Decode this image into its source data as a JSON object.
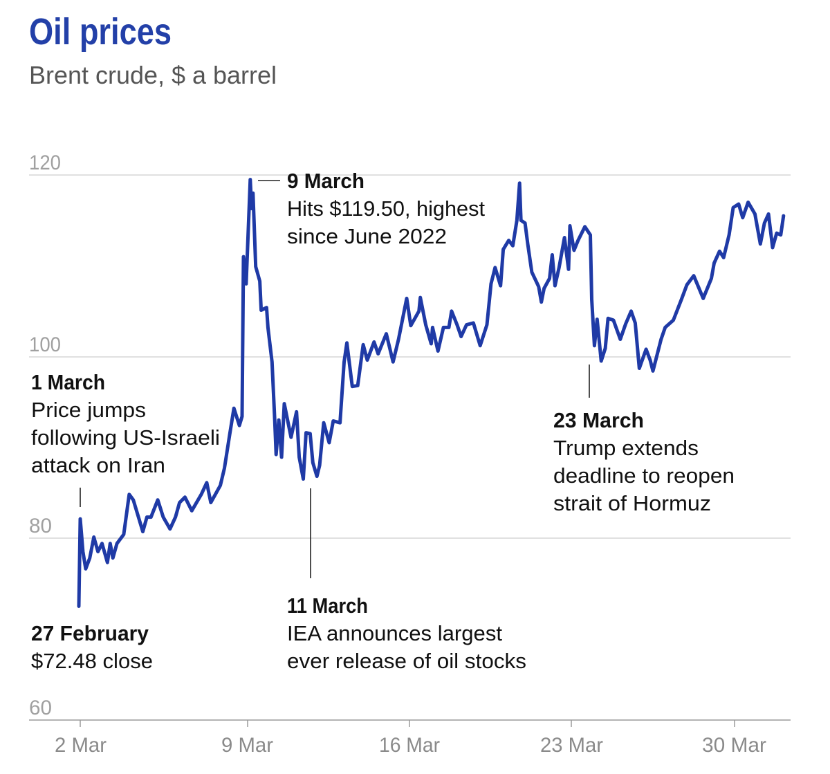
{
  "header": {
    "title": "Oil prices",
    "subtitle": "Brent crude, $ a barrel"
  },
  "chart_data": {
    "type": "line",
    "title": "Oil prices",
    "subtitle": "Brent crude, $ a barrel",
    "xlabel": "",
    "ylabel": "",
    "ylim": [
      60,
      120
    ],
    "yticks": [
      "120",
      "100",
      "80",
      "60"
    ],
    "xticks": [
      "2 Mar",
      "9 Mar",
      "16 Mar",
      "23 Mar",
      "30 Mar"
    ],
    "grid": true,
    "line_color": "#1f3aa6",
    "title_color": "#2340a8",
    "series": [
      {
        "x": [
          "02-27 23:00",
          "03-02 00:00",
          "03-02 02:00",
          "03-02 04:00",
          "03-02 07:00",
          "03-02 10:00",
          "03-02 13:00",
          "03-02 16:00",
          "03-02 20:00",
          "03-02 22:00",
          "03-03 00:00",
          "03-03 03:00",
          "03-03 08:00",
          "03-03 12:00",
          "03-03 15:00",
          "03-03 22:00",
          "03-04 01:00",
          "03-04 04:00",
          "03-04 09:00",
          "03-04 13:00",
          "03-04 18:00",
          "03-04 22:00",
          "03-05 01:00",
          "03-05 05:00",
          "03-05 10:00",
          "03-05 17:00",
          "03-05 21:00",
          "03-06 00:00",
          "03-06 07:00",
          "03-06 10:00",
          "03-06 14:00",
          "03-06 17:00",
          "03-06 21:00",
          "03-06 23:00",
          "03-09 00:00",
          "03-09 02:00",
          "03-09 05:00",
          "03-09 06:00",
          "03-09 07:00",
          "03-09 09:00",
          "03-09 12:00",
          "03-09 13:00",
          "03-09 17:00",
          "03-09 18:00",
          "03-09 21:00",
          "03-09 23:00",
          "03-10 00:00",
          "03-10 02:00",
          "03-10 04:00",
          "03-10 06:00",
          "03-10 11:00",
          "03-10 15:00",
          "03-10 17:00",
          "03-10 20:00",
          "03-10 22:00",
          "03-11 01:00",
          "03-11 03:00",
          "03-11 06:00",
          "03-11 08:00",
          "03-11 11:00",
          "03-11 15:00",
          "03-11 18:00",
          "03-11 23:00",
          "03-12 02:00",
          "03-12 04:00",
          "03-12 08:00",
          "03-12 12:00",
          "03-12 16:00",
          "03-12 19:00",
          "03-13 00:00",
          "03-13 03:00",
          "03-13 09:00",
          "03-13 14:00",
          "03-13 18:00",
          "03-16 00:00",
          "03-16 03:00",
          "03-16 09:00",
          "03-16 10:00",
          "03-16 14:00",
          "03-16 18:00",
          "03-16 19:00",
          "03-16 23:00",
          "03-17 03:00",
          "03-17 07:00",
          "03-17 09:00",
          "03-17 13:00",
          "03-17 16:00",
          "03-17 20:00",
          "03-18 01:00",
          "03-18 06:00",
          "03-18 11:00",
          "03-18 14:00",
          "03-18 17:00",
          "03-18 21:00",
          "03-18 23:00",
          "03-19 03:00",
          "03-19 06:00",
          "03-19 09:00",
          "03-19 11:00",
          "03-19 12:00",
          "03-19 15:00",
          "03-19 17:00",
          "03-19 20:00",
          "03-20 01:00",
          "03-20 03:00",
          "03-20 05:00",
          "03-20 09:00",
          "03-20 11:00",
          "03-20 13:00",
          "03-20 16:00",
          "03-20 20:00",
          "03-20 23:00",
          "03-23 00:00",
          "03-23 03:00",
          "03-23 06:00",
          "03-23 11:00",
          "03-23 15:00",
          "03-23 16:00",
          "03-23 18:00",
          "03-23 20:00",
          "03-23 23:00",
          "03-24 02:00",
          "03-24 04:00",
          "03-24 08:00",
          "03-24 13:00",
          "03-24 17:00",
          "03-24 21:00",
          "03-25 00:00",
          "03-25 03:00",
          "03-25 08:00",
          "03-25 11:00",
          "03-25 13:00",
          "03-25 19:00",
          "03-25 22:00",
          "03-26 04:00",
          "03-26 10:00",
          "03-26 14:00",
          "03-26 19:00",
          "03-27 02:00",
          "03-27 08:00",
          "03-27 10:00",
          "03-27 14:00",
          "03-27 17:00",
          "03-27 21:00",
          "03-30 00:00",
          "03-30 04:00",
          "03-30 07:00",
          "03-30 11:00",
          "03-30 16:00",
          "03-30 20:00",
          "03-30 23:00",
          "03-31 02:00",
          "03-31 05:00",
          "03-31 08:00",
          "03-31 11:00",
          "03-31 13:00"
        ],
        "y": [
          72.48,
          82.1,
          78.5,
          76.6,
          77.8,
          80.1,
          78.5,
          79.4,
          77.3,
          79.4,
          77.8,
          79.4,
          80.4,
          84.8,
          84.2,
          80.7,
          82.3,
          82.3,
          84.2,
          82.3,
          81.0,
          82.3,
          83.9,
          84.5,
          83.0,
          84.8,
          86.1,
          83.9,
          85.8,
          87.7,
          91.5,
          94.3,
          92.4,
          93.4,
          111.0,
          108.0,
          119.5,
          116.3,
          118.0,
          109.9,
          108.3,
          105.1,
          105.4,
          103.2,
          99.4,
          93.0,
          89.2,
          93.0,
          88.9,
          94.8,
          91.1,
          93.9,
          88.9,
          86.5,
          91.6,
          91.5,
          88.3,
          86.8,
          88.0,
          92.7,
          90.5,
          92.9,
          92.7,
          99.4,
          101.5,
          96.7,
          96.8,
          101.3,
          99.6,
          101.6,
          100.3,
          102.5,
          99.4,
          101.9,
          106.4,
          103.4,
          105.0,
          106.5,
          103.5,
          101.4,
          103.2,
          100.6,
          103.2,
          103.2,
          105.0,
          103.5,
          102.2,
          103.5,
          103.7,
          101.2,
          103.5,
          108.0,
          109.8,
          107.8,
          111.8,
          112.8,
          112.2,
          115.0,
          119.1,
          115.0,
          114.7,
          112.4,
          109.3,
          107.7,
          106.0,
          107.5,
          108.6,
          111.2,
          107.8,
          109.8,
          113.1,
          109.6,
          114.4,
          111.7,
          112.8,
          114.3,
          113.4,
          106.3,
          101.2,
          104.1,
          99.5,
          100.9,
          104.2,
          104.0,
          101.9,
          103.6,
          105.0,
          103.7,
          98.7,
          100.8,
          99.6,
          98.4,
          101.9,
          103.2,
          104.0,
          106.3,
          107.9,
          108.9,
          106.4,
          108.6,
          110.3,
          111.6,
          110.9,
          113.4,
          116.4,
          116.8,
          115.3,
          117.0,
          115.7,
          112.4,
          114.7,
          115.7,
          112.0,
          113.6,
          113.4,
          115.5
        ]
      }
    ],
    "annotations": [
      {
        "heading": "1 March",
        "lines": [
          "Price jumps",
          "following US-Israeli",
          "attack on Iran"
        ]
      },
      {
        "heading": "9 March",
        "lines": [
          "Hits $119.50, highest",
          "since June 2022"
        ]
      },
      {
        "heading": "11 March",
        "lines": [
          "IEA announces largest",
          "ever release of oil stocks"
        ]
      },
      {
        "heading": "23 March",
        "lines": [
          "Trump extends",
          "deadline to reopen",
          "strait of Hormuz"
        ]
      },
      {
        "heading": "27 February",
        "lines": [
          "$72.48 close"
        ]
      }
    ]
  }
}
